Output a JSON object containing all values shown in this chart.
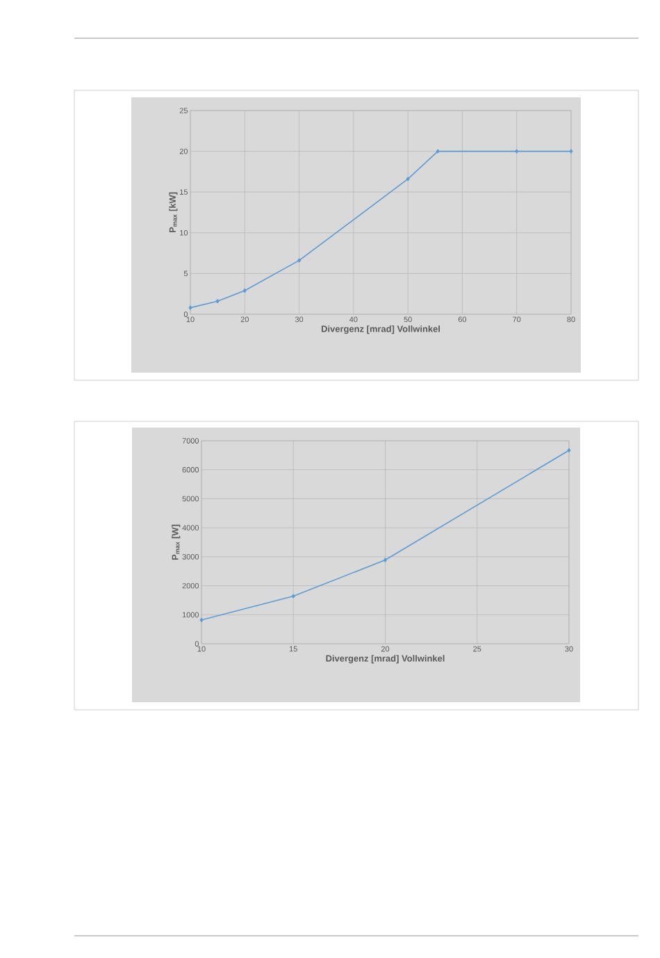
{
  "chart_data": [
    {
      "type": "line",
      "xlabel": "Divergenz [mrad] Vollwinkel",
      "ylabel": "P$_{max}$ [kW]",
      "x": [
        10,
        15,
        20,
        30,
        50,
        55.5,
        70,
        80
      ],
      "series": [
        {
          "color": "#5b9bd5",
          "values": [
            0.8,
            1.6,
            2.9,
            6.6,
            16.6,
            20,
            20,
            20
          ]
        }
      ],
      "xlim": [
        10,
        80
      ],
      "ylim": [
        0,
        25
      ],
      "xticks": [
        10,
        20,
        30,
        40,
        50,
        60,
        70,
        80
      ],
      "yticks": [
        0,
        5,
        10,
        15,
        20,
        25
      ],
      "grid": true,
      "marker": "diamond"
    },
    {
      "type": "line",
      "xlabel": "Divergenz [mrad] Vollwinkel",
      "ylabel": "P$_{max}$ [W]",
      "x": [
        10,
        15,
        20,
        30
      ],
      "series": [
        {
          "color": "#5b9bd5",
          "values": [
            820,
            1640,
            2890,
            6670
          ]
        }
      ],
      "xlim": [
        10,
        30
      ],
      "ylim": [
        0,
        7000
      ],
      "xticks": [
        10,
        15,
        20,
        25,
        30
      ],
      "yticks": [
        0,
        1000,
        2000,
        3000,
        4000,
        5000,
        6000,
        7000
      ],
      "grid": true,
      "marker": "diamond"
    }
  ]
}
